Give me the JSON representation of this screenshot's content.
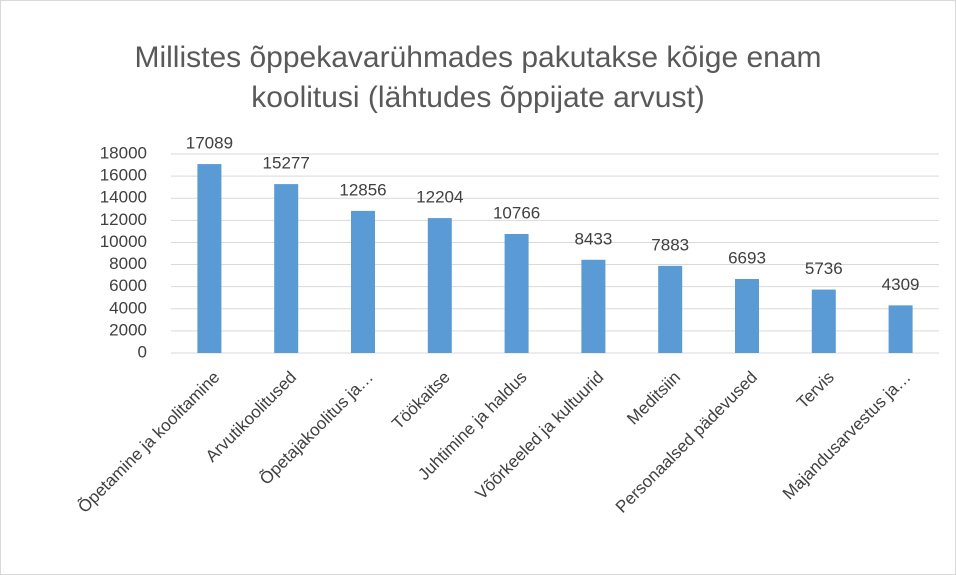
{
  "chart_data": {
    "type": "bar",
    "title": "Millistes õppekavarühmades pakutakse kõige enam koolitusi (lähtudes õppijate arvust)",
    "categories": [
      "Õpetamine ja koolitamine",
      "Arvutikoolitused",
      "Õpetajakoolitus ja…",
      "Töökaitse",
      "Juhtimine ja haldus",
      "Võõrkeeled ja kultuurid",
      "Meditsiin",
      "Personaalsed pädevused",
      "Tervis",
      "Majandusarvestus ja…"
    ],
    "values": [
      17089,
      15277,
      12856,
      12204,
      10766,
      8433,
      7883,
      6693,
      5736,
      4309
    ],
    "color": "#5b9bd5",
    "ylim": [
      0,
      18000
    ],
    "yticks": [
      0,
      2000,
      4000,
      6000,
      8000,
      10000,
      12000,
      14000,
      16000,
      18000
    ],
    "grid": true
  }
}
